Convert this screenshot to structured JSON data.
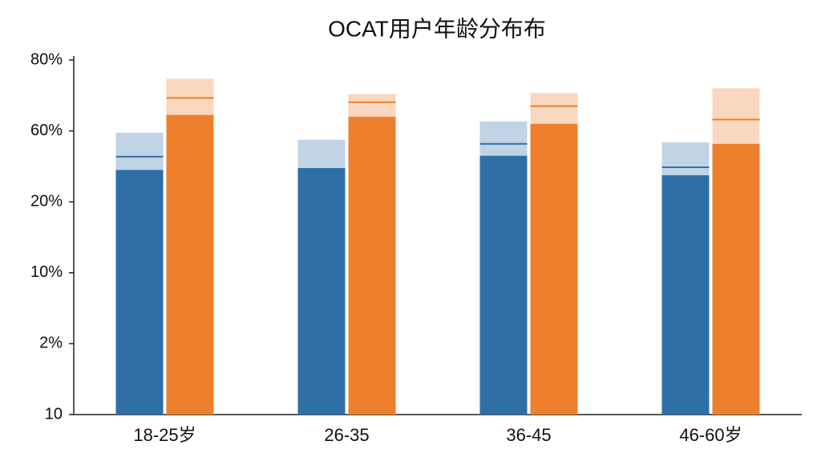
{
  "chart_data": {
    "type": "bar",
    "title": "OCAT用户年龄分布布",
    "categories": [
      "18-25岁",
      "26-35",
      "36-45",
      "46-60岁"
    ],
    "yticks": [
      10,
      {
        "value": 2,
        "label": "2%"
      },
      {
        "value": 10,
        "label": "10%"
      },
      {
        "value": 20,
        "label": "20%"
      },
      {
        "value": 60,
        "label": "60%"
      },
      {
        "value": 80,
        "label": "80%"
      }
    ],
    "series": [
      {
        "color": "#2f6fa8",
        "values": [
          38,
          38.6,
          46,
          35
        ],
        "upper": [
          59,
          55,
          62.7,
          53.6
        ],
        "line": [
          45.5,
          38.6,
          52.7,
          39.5
        ]
      },
      {
        "color": "#ee7f2d",
        "values": [
          64.5,
          64,
          62,
          52.7
        ],
        "upper": [
          74.7,
          70.4,
          70.7,
          72
        ],
        "line": [
          69.3,
          68.1,
          67,
          63.2
        ]
      }
    ]
  }
}
